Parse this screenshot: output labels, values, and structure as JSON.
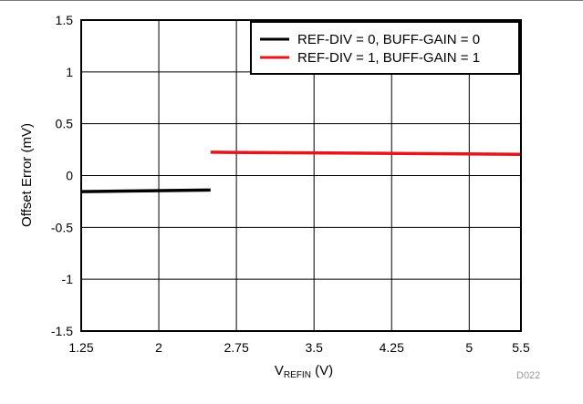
{
  "figure_code": "D022",
  "chart_data": {
    "type": "line",
    "xlabel": {
      "main": "V",
      "sub": "REFIN",
      "unit": " (V)"
    },
    "ylabel": "Offset Error (mV)",
    "xlim": [
      1.25,
      5.5
    ],
    "ylim": [
      -1.5,
      1.5
    ],
    "xticks": [
      1.25,
      2,
      2.75,
      3.5,
      4.25,
      5,
      5.5
    ],
    "xtick_labels": [
      "1.25",
      "2",
      "2.75",
      "3.5",
      "4.25",
      "5",
      "5.5"
    ],
    "yticks": [
      1.5,
      1,
      0.5,
      0,
      -0.5,
      -1,
      -1.5
    ],
    "ytick_labels": [
      "1.5",
      "1",
      "0.5",
      "0",
      "-0.5",
      "-1",
      "-1.5"
    ],
    "grid": true,
    "legend_position": "top-right",
    "series": [
      {
        "name": "REF-DIV = 0, BUFF-GAIN = 0",
        "color": "#000000",
        "x": [
          1.25,
          2.5
        ],
        "y": [
          -0.155,
          -0.14
        ]
      },
      {
        "name": "REF-DIV = 1, BUFF-GAIN = 1",
        "color": "#e8141b",
        "x": [
          2.5,
          5.5
        ],
        "y": [
          0.225,
          0.205
        ]
      }
    ]
  }
}
